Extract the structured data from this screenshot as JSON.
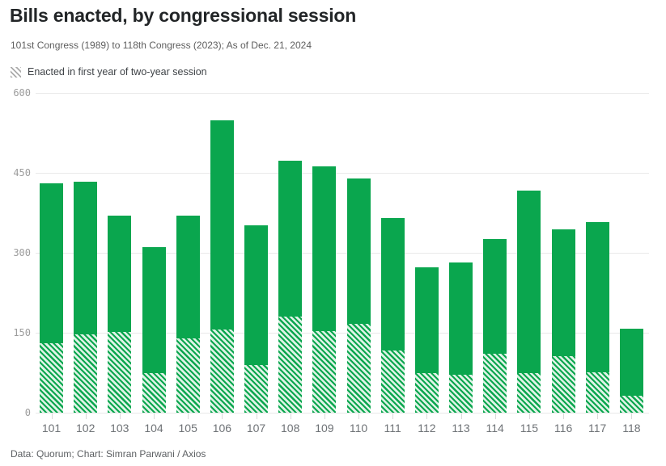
{
  "header": {
    "title": "Bills enacted, by congressional session",
    "subtitle": "101st Congress (1989) to 118th Congress (2023); As of Dec. 21, 2024"
  },
  "legend": {
    "swatch_icon": "hatch-pattern-icon",
    "label": "Enacted in first year of two-year session"
  },
  "footer": {
    "source": "Data: Quorum; Chart: Simran Parwani / Axios"
  },
  "colors": {
    "bar_green": "#0aa64e",
    "hatch_gap_light_green": "#def3e6",
    "legend_hatch_gray": "#ababab",
    "gridline": "#e9e9e9",
    "axis_tick": "#d9d9d9",
    "y_label_gray": "#9c9c9c",
    "x_label_gray": "#6e7276"
  },
  "chart_data": {
    "type": "bar",
    "stacked": true,
    "title": "Bills enacted, by congressional session",
    "xlabel": "",
    "ylabel": "",
    "categories": [
      "101",
      "102",
      "103",
      "104",
      "105",
      "106",
      "107",
      "108",
      "109",
      "110",
      "111",
      "112",
      "113",
      "114",
      "115",
      "116",
      "117",
      "118"
    ],
    "total_values": [
      430,
      434,
      369,
      311,
      370,
      548,
      351,
      472,
      462,
      439,
      365,
      273,
      282,
      326,
      416,
      344,
      358,
      158
    ],
    "first_year_values": [
      131,
      147,
      151,
      74,
      139,
      156,
      90,
      181,
      153,
      167,
      117,
      74,
      71,
      110,
      74,
      106,
      76,
      32
    ],
    "first_year_label": "Enacted in first year of two-year session",
    "first_year_style": "hatched",
    "remainder_style": "solid",
    "ylim": [
      0,
      600
    ],
    "yticks": [
      0,
      150,
      300,
      450,
      600
    ],
    "grid": true,
    "legend_position": "top-left"
  }
}
